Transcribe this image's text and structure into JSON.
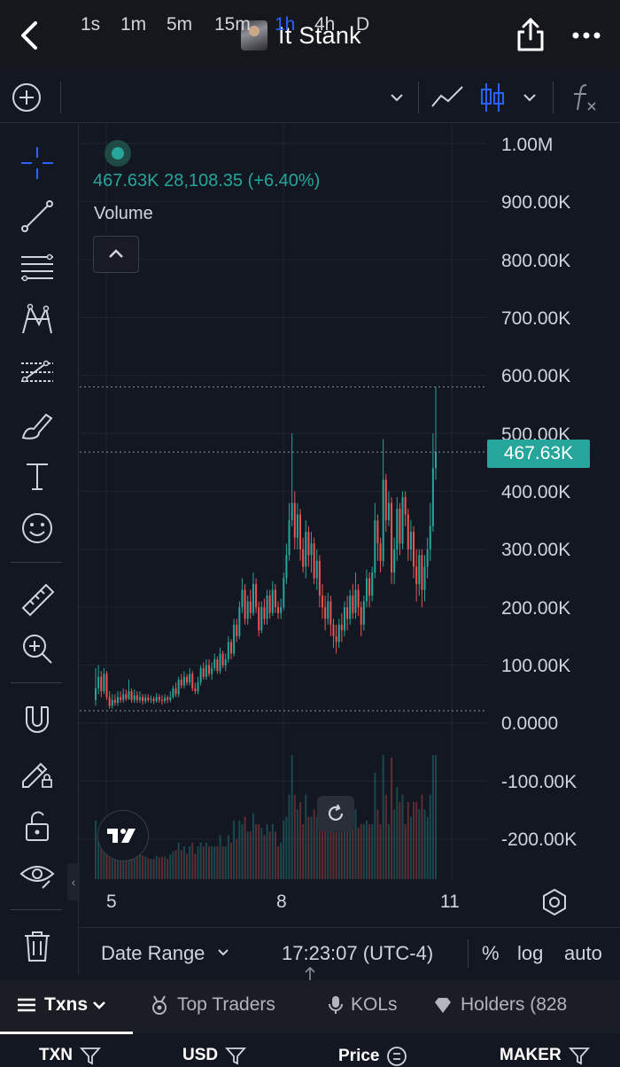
{
  "header": {
    "title": "It Stank"
  },
  "toolbar": {
    "timeframes": [
      "1s",
      "1m",
      "5m",
      "15m",
      "1h",
      "4h",
      "D"
    ],
    "active_timeframe": "1h"
  },
  "legend": {
    "values": "467.63K  28,108.35 (+6.40%)",
    "volume_label": "Volume"
  },
  "price_axis": {
    "labels": [
      "1.00M",
      "900.00K",
      "800.00K",
      "700.00K",
      "600.00K",
      "500.00K",
      "400.00K",
      "300.00K",
      "200.00K",
      "100.00K",
      "0.0000",
      "-100.00K",
      "-200.00K"
    ],
    "current_price_tag": "467.63K"
  },
  "time_axis": {
    "labels": [
      "5",
      "8",
      "11"
    ]
  },
  "bottom_controls": {
    "date_range": "Date Range",
    "time": "17:23:07 (UTC-4)",
    "percent": "%",
    "log": "log",
    "auto": "auto"
  },
  "tabs": {
    "txns": "Txns",
    "top_traders": "Top Traders",
    "kols": "KOLs",
    "holders": "Holders (828"
  },
  "table_headers": {
    "txn": "TXN",
    "usd": "USD",
    "price": "Price",
    "maker": "MAKER"
  },
  "colors": {
    "background": "#131722",
    "up": "#26a69a",
    "down": "#ef5350",
    "accent": "#2962ff"
  },
  "chart_data": {
    "type": "candlestick",
    "y_unit": "market cap",
    "ylim": [
      -260000,
      1000000
    ],
    "x_ticks": [
      "5",
      "8",
      "11"
    ],
    "last_value": 467630,
    "last_change": 28108.35,
    "last_change_pct": 6.4,
    "candles": [
      [
        0,
        40000,
        60000,
        95000,
        30000
      ],
      [
        1,
        60000,
        80000,
        100000,
        50000
      ],
      [
        2,
        80000,
        55000,
        90000,
        45000
      ],
      [
        3,
        55000,
        85000,
        95000,
        50000
      ],
      [
        4,
        85000,
        45000,
        90000,
        40000
      ],
      [
        5,
        45000,
        30000,
        55000,
        25000
      ],
      [
        6,
        30000,
        40000,
        50000,
        25000
      ],
      [
        7,
        40000,
        35000,
        50000,
        30000
      ],
      [
        8,
        35000,
        45000,
        55000,
        30000
      ],
      [
        9,
        45000,
        40000,
        55000,
        35000
      ],
      [
        10,
        40000,
        50000,
        60000,
        35000
      ],
      [
        11,
        50000,
        42000,
        58000,
        38000
      ],
      [
        12,
        42000,
        55000,
        75000,
        40000
      ],
      [
        13,
        55000,
        40000,
        60000,
        35000
      ],
      [
        14,
        40000,
        48000,
        58000,
        35000
      ],
      [
        15,
        48000,
        40000,
        55000,
        35000
      ],
      [
        16,
        40000,
        45000,
        55000,
        35000
      ],
      [
        17,
        45000,
        38000,
        50000,
        32000
      ],
      [
        18,
        38000,
        44000,
        50000,
        34000
      ],
      [
        19,
        44000,
        40000,
        50000,
        36000
      ],
      [
        20,
        40000,
        42000,
        48000,
        35000
      ],
      [
        21,
        42000,
        38000,
        46000,
        33000
      ],
      [
        22,
        38000,
        45000,
        52000,
        35000
      ],
      [
        23,
        45000,
        40000,
        50000,
        35000
      ],
      [
        24,
        40000,
        38000,
        48000,
        32000
      ],
      [
        25,
        38000,
        44000,
        50000,
        34000
      ],
      [
        26,
        44000,
        40000,
        48000,
        35000
      ],
      [
        27,
        40000,
        45000,
        55000,
        36000
      ],
      [
        28,
        45000,
        60000,
        65000,
        42000
      ],
      [
        29,
        60000,
        50000,
        70000,
        45000
      ],
      [
        30,
        50000,
        75000,
        80000,
        45000
      ],
      [
        31,
        75000,
        65000,
        85000,
        60000
      ],
      [
        32,
        65000,
        80000,
        90000,
        60000
      ],
      [
        33,
        80000,
        70000,
        85000,
        65000
      ],
      [
        34,
        70000,
        85000,
        95000,
        65000
      ],
      [
        35,
        85000,
        60000,
        90000,
        55000
      ],
      [
        36,
        60000,
        55000,
        70000,
        50000
      ],
      [
        37,
        55000,
        70000,
        80000,
        50000
      ],
      [
        38,
        70000,
        95000,
        100000,
        65000
      ],
      [
        39,
        95000,
        80000,
        105000,
        75000
      ],
      [
        40,
        80000,
        100000,
        110000,
        75000
      ],
      [
        41,
        100000,
        85000,
        110000,
        80000
      ],
      [
        42,
        85000,
        95000,
        105000,
        75000
      ],
      [
        43,
        95000,
        110000,
        120000,
        90000
      ],
      [
        44,
        110000,
        90000,
        115000,
        85000
      ],
      [
        45,
        90000,
        120000,
        130000,
        85000
      ],
      [
        46,
        120000,
        100000,
        125000,
        95000
      ],
      [
        47,
        100000,
        110000,
        120000,
        90000
      ],
      [
        48,
        110000,
        140000,
        150000,
        105000
      ],
      [
        49,
        140000,
        120000,
        145000,
        110000
      ],
      [
        50,
        120000,
        170000,
        180000,
        115000
      ],
      [
        51,
        170000,
        150000,
        180000,
        140000
      ],
      [
        52,
        150000,
        200000,
        210000,
        145000
      ],
      [
        53,
        200000,
        230000,
        250000,
        190000
      ],
      [
        54,
        230000,
        180000,
        240000,
        170000
      ],
      [
        55,
        180000,
        210000,
        220000,
        170000
      ],
      [
        56,
        210000,
        190000,
        230000,
        180000
      ],
      [
        57,
        190000,
        240000,
        260000,
        185000
      ],
      [
        58,
        240000,
        200000,
        250000,
        190000
      ],
      [
        59,
        200000,
        160000,
        210000,
        150000
      ],
      [
        60,
        160000,
        200000,
        210000,
        155000
      ],
      [
        61,
        200000,
        180000,
        215000,
        170000
      ],
      [
        62,
        180000,
        220000,
        230000,
        170000
      ],
      [
        63,
        220000,
        190000,
        230000,
        180000
      ],
      [
        64,
        190000,
        230000,
        245000,
        185000
      ],
      [
        65,
        230000,
        200000,
        240000,
        190000
      ],
      [
        66,
        200000,
        190000,
        210000,
        180000
      ],
      [
        67,
        190000,
        200000,
        215000,
        180000
      ],
      [
        68,
        200000,
        250000,
        260000,
        195000
      ],
      [
        69,
        250000,
        290000,
        310000,
        240000
      ],
      [
        70,
        290000,
        350000,
        380000,
        280000
      ],
      [
        71,
        350000,
        380000,
        500000,
        340000
      ],
      [
        72,
        380000,
        320000,
        400000,
        300000
      ],
      [
        73,
        320000,
        360000,
        380000,
        300000
      ],
      [
        74,
        360000,
        300000,
        370000,
        280000
      ],
      [
        75,
        300000,
        270000,
        320000,
        260000
      ],
      [
        76,
        270000,
        330000,
        350000,
        250000
      ],
      [
        77,
        330000,
        290000,
        340000,
        270000
      ],
      [
        78,
        290000,
        310000,
        330000,
        260000
      ],
      [
        79,
        310000,
        250000,
        320000,
        240000
      ],
      [
        80,
        250000,
        280000,
        300000,
        230000
      ],
      [
        81,
        280000,
        220000,
        290000,
        200000
      ],
      [
        82,
        220000,
        200000,
        240000,
        180000
      ],
      [
        83,
        200000,
        180000,
        220000,
        160000
      ],
      [
        84,
        180000,
        210000,
        225000,
        170000
      ],
      [
        85,
        210000,
        170000,
        220000,
        150000
      ],
      [
        86,
        170000,
        150000,
        180000,
        130000
      ],
      [
        87,
        150000,
        140000,
        170000,
        120000
      ],
      [
        88,
        140000,
        170000,
        180000,
        130000
      ],
      [
        89,
        170000,
        160000,
        190000,
        140000
      ],
      [
        90,
        160000,
        200000,
        210000,
        150000
      ],
      [
        91,
        200000,
        180000,
        220000,
        160000
      ],
      [
        92,
        180000,
        220000,
        230000,
        170000
      ],
      [
        93,
        220000,
        190000,
        240000,
        180000
      ],
      [
        94,
        190000,
        230000,
        260000,
        180000
      ],
      [
        95,
        230000,
        200000,
        240000,
        185000
      ],
      [
        96,
        200000,
        170000,
        210000,
        150000
      ],
      [
        97,
        170000,
        210000,
        220000,
        160000
      ],
      [
        98,
        210000,
        250000,
        265000,
        200000
      ],
      [
        99,
        250000,
        220000,
        260000,
        200000
      ],
      [
        100,
        220000,
        260000,
        270000,
        210000
      ],
      [
        101,
        260000,
        350000,
        380000,
        250000
      ],
      [
        102,
        350000,
        310000,
        360000,
        280000
      ],
      [
        103,
        310000,
        280000,
        320000,
        260000
      ],
      [
        104,
        280000,
        420000,
        490000,
        270000
      ],
      [
        105,
        420000,
        350000,
        430000,
        330000
      ],
      [
        106,
        350000,
        380000,
        400000,
        340000
      ],
      [
        107,
        380000,
        260000,
        390000,
        240000
      ],
      [
        108,
        260000,
        300000,
        320000,
        240000
      ],
      [
        109,
        300000,
        370000,
        390000,
        280000
      ],
      [
        110,
        370000,
        310000,
        380000,
        290000
      ],
      [
        111,
        310000,
        390000,
        400000,
        300000
      ],
      [
        112,
        390000,
        360000,
        400000,
        340000
      ],
      [
        113,
        360000,
        300000,
        370000,
        280000
      ],
      [
        114,
        300000,
        330000,
        350000,
        280000
      ],
      [
        115,
        330000,
        270000,
        340000,
        250000
      ],
      [
        116,
        270000,
        240000,
        300000,
        210000
      ],
      [
        117,
        240000,
        290000,
        300000,
        220000
      ],
      [
        118,
        290000,
        230000,
        300000,
        200000
      ],
      [
        119,
        230000,
        270000,
        290000,
        210000
      ],
      [
        120,
        270000,
        300000,
        320000,
        250000
      ],
      [
        121,
        300000,
        340000,
        380000,
        280000
      ],
      [
        122,
        340000,
        440000,
        500000,
        330000
      ],
      [
        123,
        440000,
        467630,
        580000,
        420000
      ]
    ]
  }
}
